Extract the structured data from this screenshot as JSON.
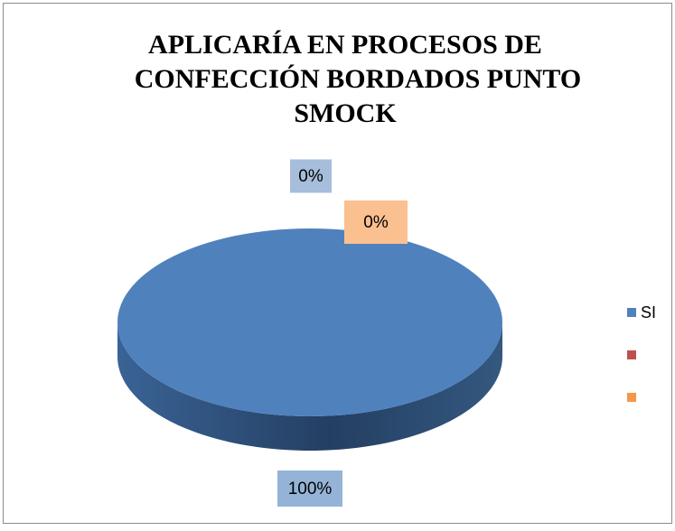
{
  "chart_data": {
    "type": "pie",
    "title": [
      "APLICARÍA EN PROCESOS DE",
      "CONFECCIÓN  BORDADOS PUNTO",
      "SMOCK"
    ],
    "categories": [
      "SI",
      null,
      null
    ],
    "values": [
      100,
      0,
      0
    ],
    "value_labels": [
      "100%",
      "0%",
      "0%"
    ],
    "colors": [
      "#4f81bd",
      "#c0504d",
      "#f79646"
    ],
    "legend": "right"
  }
}
